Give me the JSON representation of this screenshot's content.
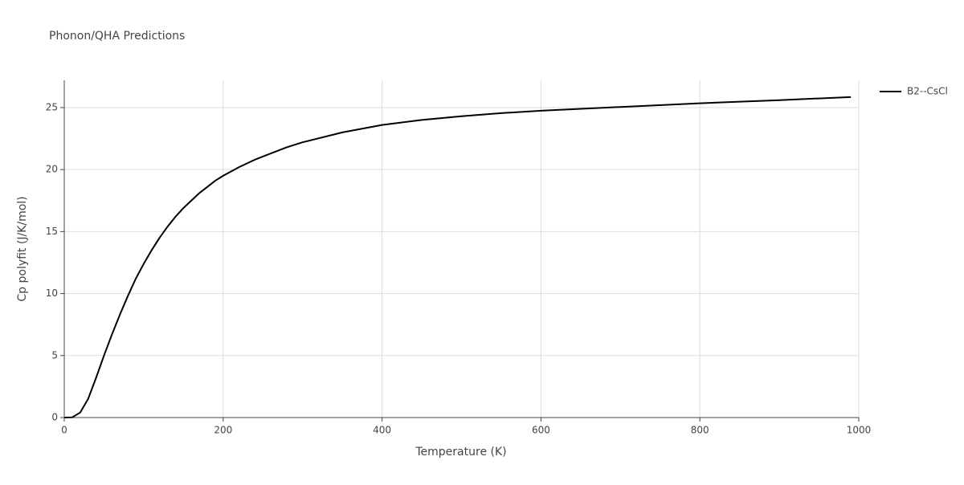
{
  "chart_data": {
    "type": "line",
    "title": "Phonon/QHA Predictions",
    "x_label": "Temperature (K)",
    "y_label": "Cp polyfit (J/K/mol)",
    "x": [
      0,
      10,
      20,
      30,
      40,
      50,
      60,
      70,
      80,
      90,
      100,
      110,
      120,
      130,
      140,
      150,
      160,
      170,
      180,
      190,
      200,
      220,
      240,
      260,
      280,
      300,
      350,
      400,
      450,
      500,
      550,
      600,
      700,
      800,
      900,
      990
    ],
    "series": [
      {
        "name": "B2--CsCl",
        "color": "#000000",
        "values": [
          0,
          0.02,
          0.4,
          1.5,
          3.2,
          5.0,
          6.7,
          8.3,
          9.8,
          11.2,
          12.4,
          13.5,
          14.5,
          15.4,
          16.2,
          16.9,
          17.5,
          18.1,
          18.6,
          19.1,
          19.5,
          20.2,
          20.8,
          21.3,
          21.8,
          22.2,
          23.0,
          23.6,
          24.0,
          24.3,
          24.55,
          24.75,
          25.05,
          25.35,
          25.6,
          25.85
        ]
      }
    ],
    "xlim": [
      0,
      1000
    ],
    "xticks": [
      0,
      200,
      400,
      600,
      800,
      1000
    ],
    "ylim": [
      0,
      27.2
    ],
    "yticks": [
      0,
      5,
      10,
      15,
      20,
      25
    ],
    "grid": true,
    "legend": "right"
  }
}
